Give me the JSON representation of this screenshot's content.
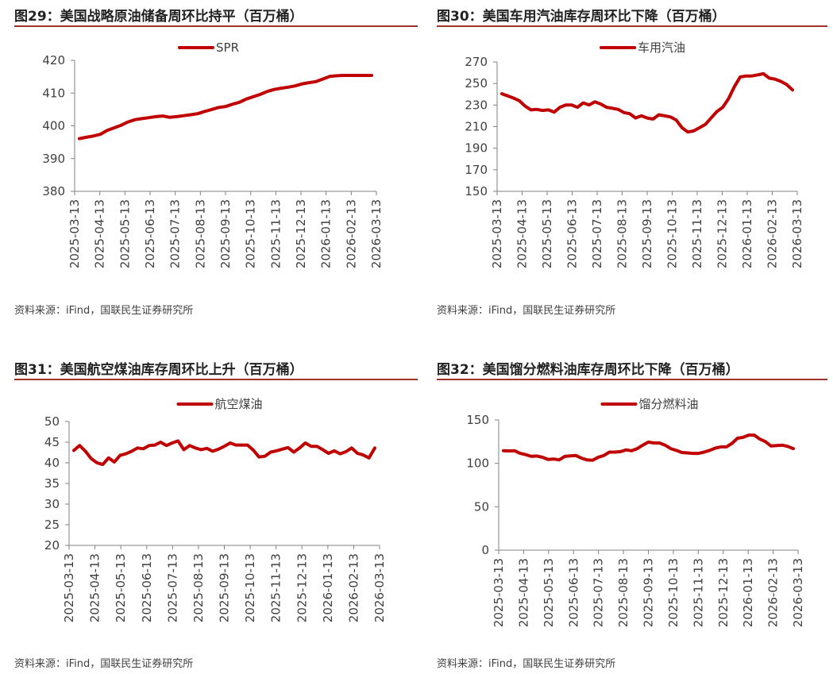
{
  "theme": {
    "line_color": "#c00000",
    "rule_color": "#a0322e",
    "axis_color": "#808080"
  },
  "panels": [
    {
      "title": "图29：美国战略原油储备周环比持平（百万桶）",
      "source": "资料来源：iFind，国联民生证券研究所"
    },
    {
      "title": "图30：美国车用汽油库存周环比下降（百万桶）",
      "source": "资料来源：iFind，国联民生证券研究所"
    },
    {
      "title": "图31：美国航空煤油库存周环比上升（百万桶）",
      "source": "资料来源：iFind，国联民生证券研究所"
    },
    {
      "title": "图32：美国馏分燃料油库存周环比下降（百万桶）",
      "source": "资料来源：iFind，国联民生证券研究所"
    }
  ],
  "chart_data": [
    {
      "type": "line",
      "title": "图29：美国战略原油储备周环比持平（百万桶）",
      "series": [
        {
          "name": "SPR",
          "values": [
            396.1,
            396.5,
            396.9,
            397.4,
            398.6,
            399.4,
            400.2,
            401.2,
            401.9,
            402.2,
            402.5,
            402.8,
            403.0,
            402.6,
            402.8,
            403.1,
            403.4,
            403.7,
            404.4,
            405.0,
            405.6,
            405.9,
            406.6,
            407.2,
            408.2,
            408.9,
            409.6,
            410.5,
            411.1,
            411.5,
            411.8,
            412.2,
            412.8,
            413.2,
            413.5,
            414.3,
            415.1,
            415.3,
            415.4,
            415.4,
            415.4,
            415.4,
            415.4
          ]
        }
      ],
      "x_ticks": [
        "2025-03-13",
        "2025-04-13",
        "2025-05-13",
        "2025-06-13",
        "2025-07-13",
        "2025-08-13",
        "2025-09-13",
        "2025-10-13",
        "2025-11-13",
        "2025-12-13",
        "2026-01-13",
        "2026-02-13",
        "2026-03-13"
      ],
      "y_ticks": [
        380,
        390,
        400,
        410,
        420
      ],
      "ylim": [
        380,
        420
      ],
      "legend": "top-center"
    },
    {
      "type": "line",
      "title": "图30：美国车用汽油库存周环比下降（百万桶）",
      "series": [
        {
          "name": "车用汽油",
          "values": [
            240.5,
            238.5,
            236.5,
            234,
            229,
            225.5,
            226,
            225,
            225.5,
            223.5,
            228,
            230,
            230,
            228,
            232,
            230,
            233,
            231,
            228,
            227,
            226,
            223,
            222,
            218,
            220,
            218,
            217,
            221,
            220,
            219,
            216,
            209,
            205,
            206,
            209,
            212,
            218,
            224,
            228,
            236,
            247,
            256,
            257,
            257,
            258,
            259,
            255,
            254,
            252,
            249,
            244
          ]
        }
      ],
      "x_ticks": [
        "2025-03-13",
        "2025-04-13",
        "2025-05-13",
        "2025-06-13",
        "2025-07-13",
        "2025-08-13",
        "2025-09-13",
        "2025-10-13",
        "2025-11-13",
        "2025-12-13",
        "2026-01-13",
        "2026-02-13",
        "2026-03-13"
      ],
      "y_ticks": [
        150,
        170,
        190,
        210,
        230,
        250,
        270
      ],
      "ylim": [
        150,
        270
      ],
      "legend": "top-center"
    },
    {
      "type": "line",
      "title": "图31：美国航空煤油库存周环比上升（百万桶）",
      "series": [
        {
          "name": "航空煤油",
          "values": [
            43,
            44.2,
            42.8,
            41,
            40,
            39.6,
            41.2,
            40.2,
            41.8,
            42.2,
            42.8,
            43.6,
            43.4,
            44.2,
            44.3,
            45,
            44.2,
            44.8,
            45.3,
            43.2,
            44.2,
            43.6,
            43.2,
            43.5,
            42.8,
            43.3,
            44,
            44.8,
            44.3,
            44.3,
            44.3,
            43.1,
            41.4,
            41.6,
            42.6,
            42.9,
            43.3,
            43.7,
            42.6,
            43.6,
            44.8,
            44,
            44,
            43.2,
            42.3,
            42.9,
            42.2,
            42.7,
            43.6,
            42.3,
            41.9,
            41.2,
            43.6
          ]
        }
      ],
      "x_ticks": [
        "2025-03-13",
        "2025-04-13",
        "2025-05-13",
        "2025-06-13",
        "2025-07-13",
        "2025-08-13",
        "2025-09-13",
        "2025-10-13",
        "2025-11-13",
        "2025-12-13",
        "2026-01-13",
        "2026-02-13",
        "2026-03-13"
      ],
      "y_ticks": [
        20,
        25,
        30,
        35,
        40,
        45,
        50
      ],
      "ylim": [
        20,
        50
      ],
      "legend": "top-center"
    },
    {
      "type": "line",
      "title": "图32：美国馏分燃料油库存周环比下降（百万桶）",
      "series": [
        {
          "name": "馏分燃料油",
          "values": [
            114.6,
            114.3,
            114.5,
            111.5,
            110,
            108,
            108.5,
            107,
            104.5,
            105,
            104,
            108,
            108.7,
            109,
            106,
            104,
            103.5,
            107,
            109,
            113,
            113,
            113.5,
            115.5,
            114.5,
            117,
            121,
            124.5,
            123.5,
            123.5,
            121,
            117,
            115,
            112.5,
            112,
            111.5,
            111.5,
            113,
            115,
            117.5,
            119,
            119,
            123,
            129,
            130,
            132.5,
            132.5,
            128,
            125,
            120,
            120.5,
            121,
            119.5,
            117
          ]
        }
      ],
      "x_ticks": [
        "2025-03-13",
        "2025-04-13",
        "2025-05-13",
        "2025-06-13",
        "2025-07-13",
        "2025-08-13",
        "2025-09-13",
        "2025-10-13",
        "2025-11-13",
        "2025-12-13",
        "2026-01-13",
        "2026-02-13",
        "2026-03-13"
      ],
      "y_ticks": [
        0,
        50,
        100,
        150
      ],
      "ylim": [
        0,
        150
      ],
      "legend": "top-center"
    }
  ]
}
